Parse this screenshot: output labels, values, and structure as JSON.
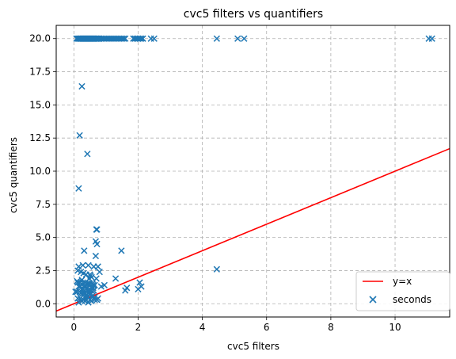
{
  "chart_data": {
    "type": "scatter",
    "title": "cvc5 filters vs quantifiers",
    "xlabel": "cvc5 filters",
    "ylabel": "cvc5 quantifiers",
    "xlim": [
      -0.55,
      11.7
    ],
    "ylim": [
      -1.0,
      21.0
    ],
    "xticks": [
      0,
      2,
      4,
      6,
      8,
      10
    ],
    "yticks": [
      0.0,
      2.5,
      5.0,
      7.5,
      10.0,
      12.5,
      15.0,
      17.5,
      20.0
    ],
    "xtick_labels": [
      "0",
      "2",
      "4",
      "6",
      "8",
      "10"
    ],
    "ytick_labels": [
      "0.0",
      "2.5",
      "5.0",
      "7.5",
      "10.0",
      "12.5",
      "15.0",
      "17.5",
      "20.0"
    ],
    "grid": true,
    "legend_position": "lower-right",
    "colors": {
      "scatter": "#1f77b4",
      "line": "#ff0000"
    },
    "series": [
      {
        "name": "y=x",
        "kind": "line",
        "x": [
          -0.55,
          11.7
        ],
        "y": [
          -0.55,
          11.7
        ]
      },
      {
        "name": "seconds",
        "kind": "scatter",
        "marker": "x",
        "x": [
          0.08,
          0.12,
          0.15,
          0.18,
          0.2,
          0.22,
          0.25,
          0.28,
          0.3,
          0.32,
          0.35,
          0.38,
          0.4,
          0.42,
          0.45,
          0.48,
          0.5,
          0.52,
          0.55,
          0.58,
          0.6,
          0.62,
          0.65,
          0.68,
          0.7,
          0.72,
          0.75,
          0.78,
          0.8,
          0.85,
          0.9,
          0.95,
          1.0,
          1.05,
          1.1,
          1.15,
          1.2,
          1.25,
          1.3,
          1.35,
          1.4,
          1.45,
          1.5,
          1.55,
          1.6,
          1.85,
          1.9,
          1.95,
          2.0,
          2.05,
          2.1,
          2.15,
          2.4,
          2.5,
          4.45,
          5.1,
          5.3,
          11.05,
          11.15,
          0.25,
          0.18,
          0.42,
          0.15,
          0.7,
          0.72,
          0.68,
          0.72,
          0.75,
          0.32,
          0.68,
          0.28,
          0.45,
          0.62,
          0.15,
          0.12,
          0.22,
          0.3,
          0.38,
          0.5,
          0.52,
          0.55,
          0.48,
          0.7,
          0.25,
          0.1,
          0.12,
          0.2,
          0.28,
          0.35,
          0.4,
          0.45,
          0.5,
          0.58,
          0.6,
          0.65,
          0.15,
          0.2,
          0.3,
          0.35,
          0.42,
          0.55,
          0.6,
          0.25,
          0.3,
          0.38,
          0.45,
          0.5,
          0.55,
          0.62,
          0.05,
          0.1,
          0.18,
          0.22,
          0.28,
          0.32,
          0.4,
          0.48,
          0.52,
          0.58,
          0.35,
          0.42,
          0.65,
          0.12,
          0.2,
          0.3,
          0.38,
          0.5,
          0.72,
          0.8,
          0.85,
          0.95,
          1.3,
          1.48,
          1.6,
          1.65,
          2.0,
          2.05,
          2.1,
          4.45,
          0.15,
          0.25,
          0.35,
          0.45,
          0.55,
          0.65,
          0.75
        ],
        "y": [
          20,
          20,
          20,
          20,
          20,
          20,
          20,
          20,
          20,
          20,
          20,
          20,
          20,
          20,
          20,
          20,
          20,
          20,
          20,
          20,
          20,
          20,
          20,
          20,
          20,
          20,
          20,
          20,
          20,
          20,
          20,
          20,
          20,
          20,
          20,
          20,
          20,
          20,
          20,
          20,
          20,
          20,
          20,
          20,
          20,
          20,
          20,
          20,
          20,
          20,
          20,
          20,
          20,
          20,
          20,
          20,
          20,
          20,
          20,
          16.4,
          12.7,
          11.3,
          8.7,
          5.6,
          5.6,
          4.7,
          4.5,
          2.8,
          4.0,
          3.6,
          2.9,
          2.9,
          2.8,
          2.8,
          2.5,
          2.4,
          2.3,
          2.2,
          2.2,
          2.1,
          2.0,
          1.9,
          1.9,
          1.8,
          1.7,
          1.6,
          1.6,
          1.6,
          1.6,
          1.5,
          1.5,
          1.5,
          1.5,
          1.4,
          1.4,
          1.3,
          1.3,
          1.3,
          1.3,
          1.2,
          1.2,
          1.2,
          1.1,
          1.1,
          1.1,
          1.0,
          1.0,
          1.0,
          1.0,
          0.9,
          0.9,
          0.9,
          0.8,
          0.8,
          0.8,
          0.7,
          0.7,
          0.7,
          0.6,
          0.5,
          0.5,
          0.5,
          0.4,
          0.4,
          0.3,
          0.3,
          0.3,
          0.3,
          2.4,
          1.3,
          1.4,
          1.9,
          4.0,
          1.0,
          1.2,
          1.1,
          1.6,
          1.3,
          2.6,
          0.1,
          0.2,
          0.2,
          0.1,
          0.2,
          0.3,
          0.4
        ]
      }
    ]
  }
}
